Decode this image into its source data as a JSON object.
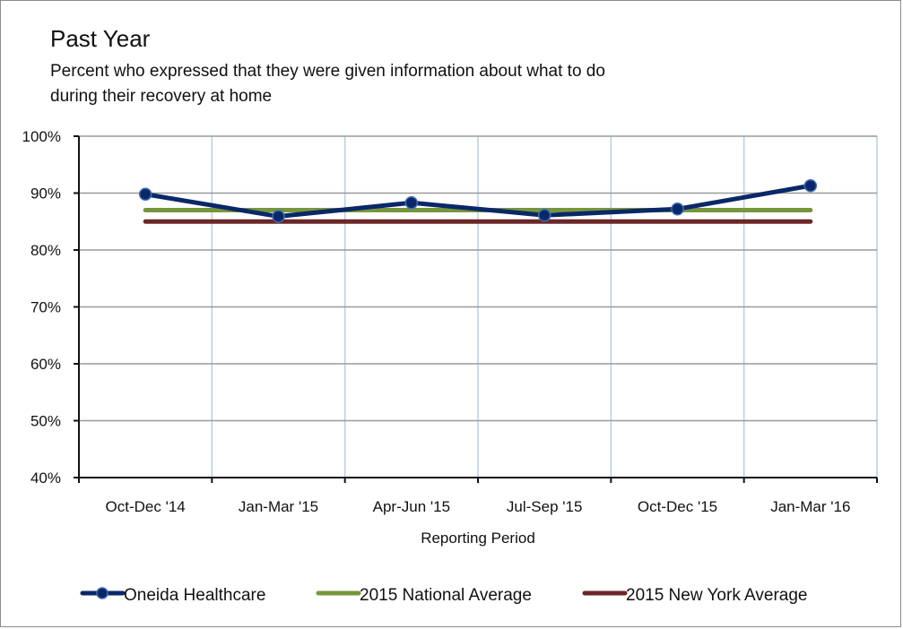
{
  "chart_data": {
    "type": "line",
    "title": "Past Year",
    "subtitle": "Percent who expressed that they were given information about what to do during their recovery at home",
    "subtitle_lines": [
      "Percent who expressed that they were given information about what to do",
      "during their recovery at home"
    ],
    "xlabel": "Reporting Period",
    "ylabel": "",
    "categories": [
      "Oct-Dec '14",
      "Jan-Mar '15",
      "Apr-Jun '15",
      "Jul-Sep '15",
      "Oct-Dec '15",
      "Jan-Mar '16"
    ],
    "ylim": [
      40,
      100
    ],
    "yticks": [
      40,
      50,
      60,
      70,
      80,
      90,
      100
    ],
    "ytick_labels": [
      "40%",
      "50%",
      "60%",
      "70%",
      "80%",
      "90%",
      "100%"
    ],
    "grid": true,
    "legend_position": "bottom",
    "series": [
      {
        "name": "Oneida Healthcare",
        "color": "#0a2868",
        "marker": "circle",
        "values": [
          89.8,
          85.9,
          88.3,
          86.1,
          87.2,
          91.3
        ]
      },
      {
        "name": "2015 National Average",
        "color": "#77963c",
        "marker": "none",
        "values": [
          87,
          87,
          87,
          87,
          87,
          87
        ]
      },
      {
        "name": "2015 New York Average",
        "color": "#6b2627",
        "marker": "none",
        "values": [
          85,
          85,
          85,
          85,
          85,
          85
        ]
      }
    ]
  }
}
